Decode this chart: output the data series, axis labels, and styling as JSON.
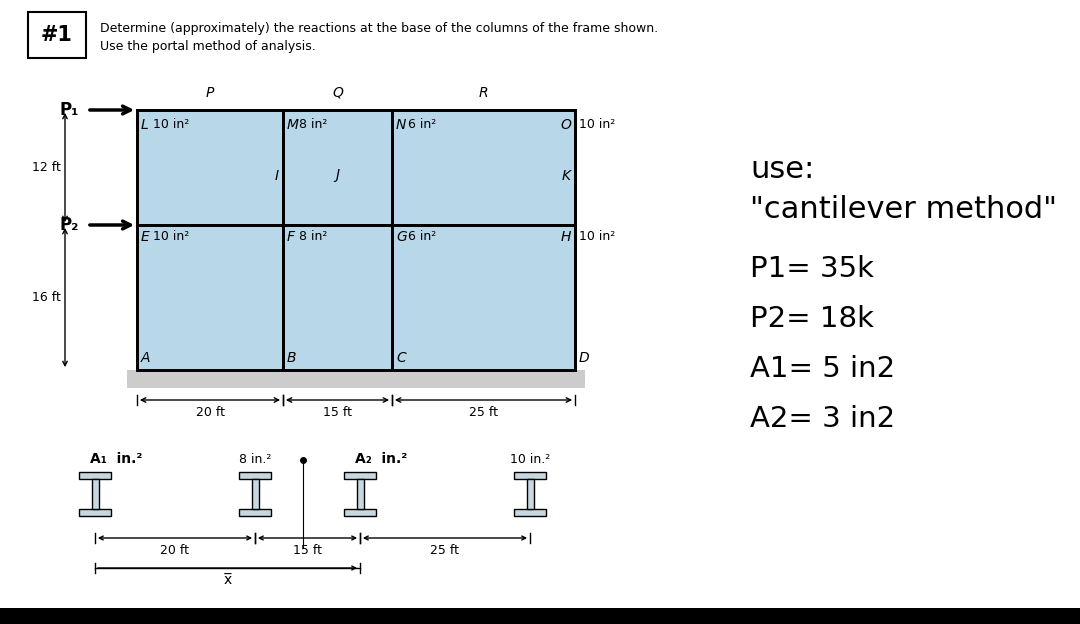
{
  "bg_color": "#ffffff",
  "frame_fill": "#b8d8ea",
  "frame_edge": "#000000",
  "title_number": "#1",
  "title_line1": "Determine (approximately) the reactions at the base of the columns of the frame shown.",
  "title_line2": "Use the portal method of analysis.",
  "P1_label": "P₁",
  "P2_label": "P₂",
  "h1_label": "12 ft",
  "h2_label": "16 ft",
  "span_labels": [
    "20 ft",
    "15 ft",
    "25 ft"
  ],
  "right_text_line0": "use:",
  "right_text_line1": "\"cantilever method\"",
  "right_text_line2": "P1= 35k",
  "right_text_line3": "P2= 18k",
  "right_text_line4": "A1= 5 in2",
  "right_text_line5": "A2= 3 in2",
  "ibeam_label0": "A₁  in.²",
  "ibeam_label1": "8 in.²",
  "ibeam_label2": "A₂  in.²",
  "ibeam_label3": "10 in.²",
  "span_labels2": [
    "20 ft",
    "15 ft",
    "25 ft"
  ],
  "xbar_label": "x̅",
  "col_in2": [
    "10 in²",
    "8 in²",
    "6 in²",
    "10 in²"
  ],
  "node_P": "P",
  "node_Q": "Q",
  "node_R": "R",
  "node_L": "L",
  "node_M": "M",
  "node_N": "N",
  "node_O": "O",
  "node_I": "I",
  "node_J": "J",
  "node_K": "K",
  "node_E": "E",
  "node_F": "F",
  "node_G": "G",
  "node_H": "H",
  "node_A": "A",
  "node_B": "B",
  "node_C": "C",
  "node_D": "D"
}
